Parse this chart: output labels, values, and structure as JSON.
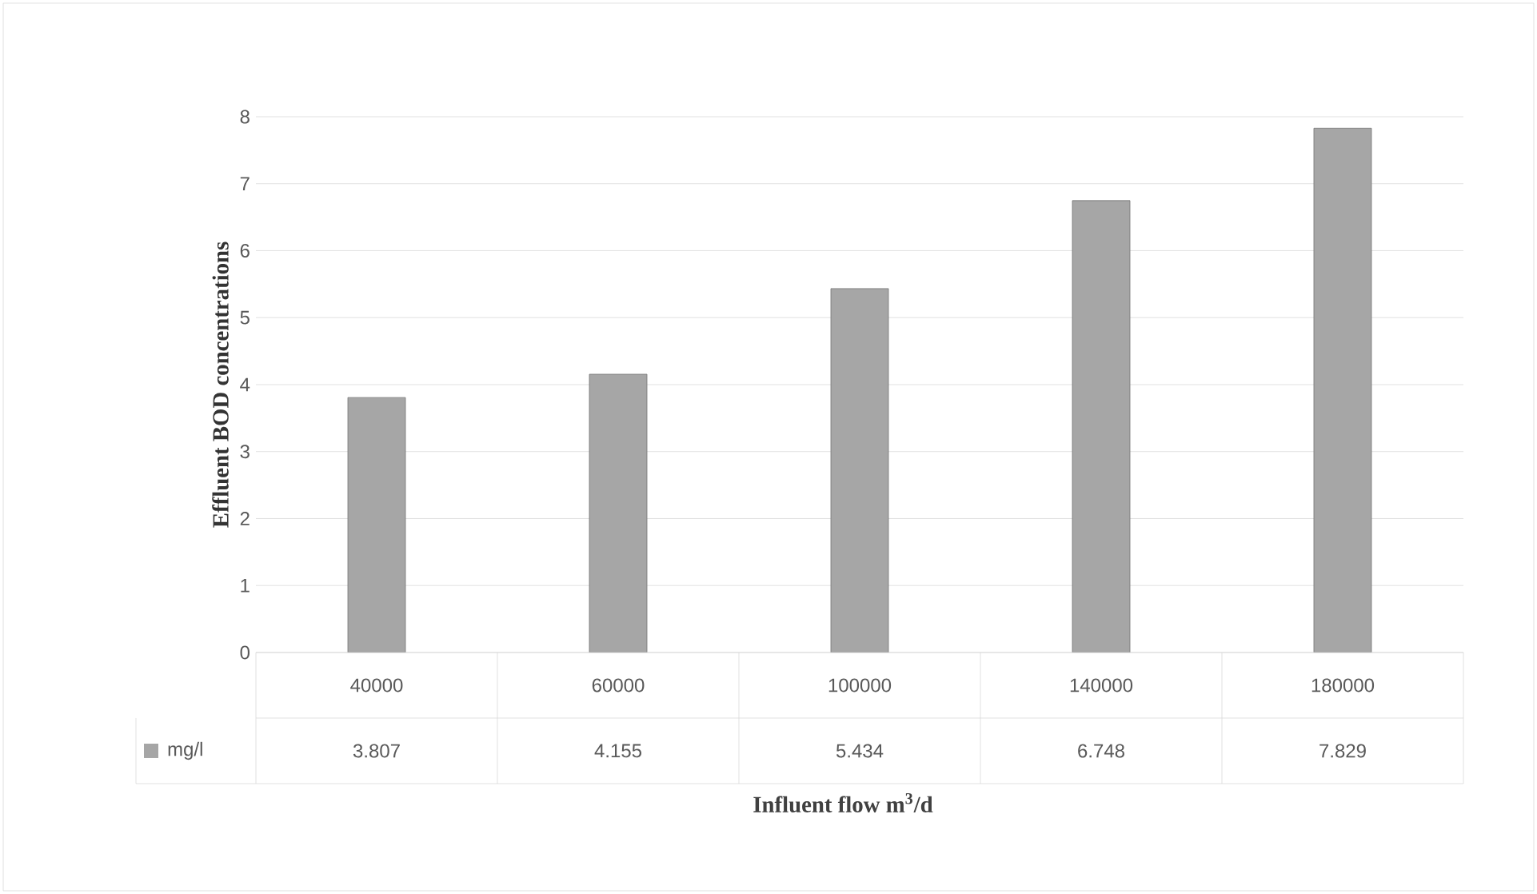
{
  "chart_data": {
    "type": "bar",
    "xlabel": "Influent flow m$^{3}$/d",
    "ylabel": "Effluent BOD concentrations",
    "categories": [
      "40000",
      "60000",
      "100000",
      "140000",
      "180000"
    ],
    "series": [
      {
        "name": "mg/l",
        "color": "#a6a6a6",
        "values": [
          3.807,
          4.155,
          5.434,
          6.748,
          7.829
        ]
      }
    ],
    "ylim": [
      0,
      8
    ],
    "yticks": [
      0,
      1,
      2,
      3,
      4,
      5,
      6,
      7,
      8
    ],
    "grid": "y",
    "data_labels": true,
    "legend": "bottom"
  }
}
